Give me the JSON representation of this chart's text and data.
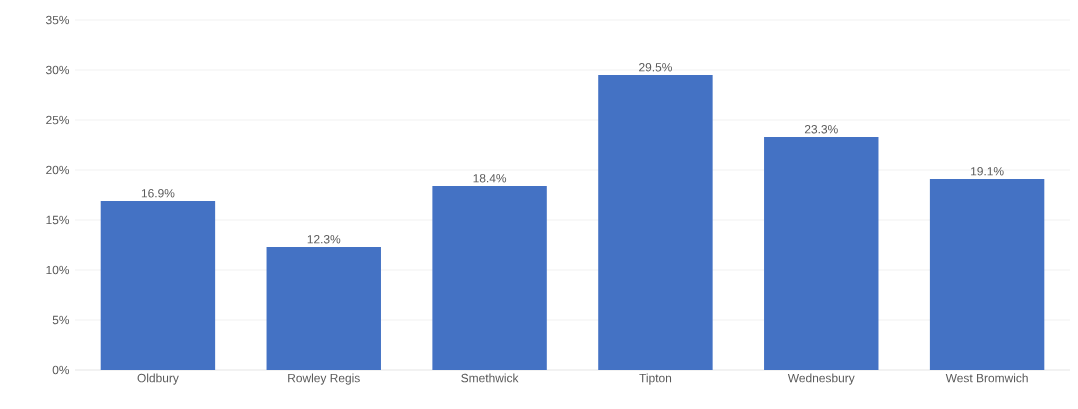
{
  "chart_data": {
    "type": "bar",
    "categories": [
      "Oldbury",
      "Rowley Regis",
      "Smethwick",
      "Tipton",
      "Wednesbury",
      "West Bromwich"
    ],
    "values": [
      16.9,
      12.3,
      18.4,
      29.5,
      23.3,
      19.1
    ],
    "value_labels": [
      "16.9%",
      "12.3%",
      "18.4%",
      "29.5%",
      "23.3%",
      "19.1%"
    ],
    "color": "#4472c4",
    "ylim": [
      0,
      35
    ],
    "yticks": [
      {
        "value": 0,
        "label": "0%"
      },
      {
        "value": 5,
        "label": "5%"
      },
      {
        "value": 10,
        "label": "10%"
      },
      {
        "value": 15,
        "label": "15%"
      },
      {
        "value": 20,
        "label": "20%"
      },
      {
        "value": 25,
        "label": "25%"
      },
      {
        "value": 30,
        "label": "30%"
      },
      {
        "value": 35,
        "label": "35%"
      }
    ],
    "grid": "y"
  }
}
